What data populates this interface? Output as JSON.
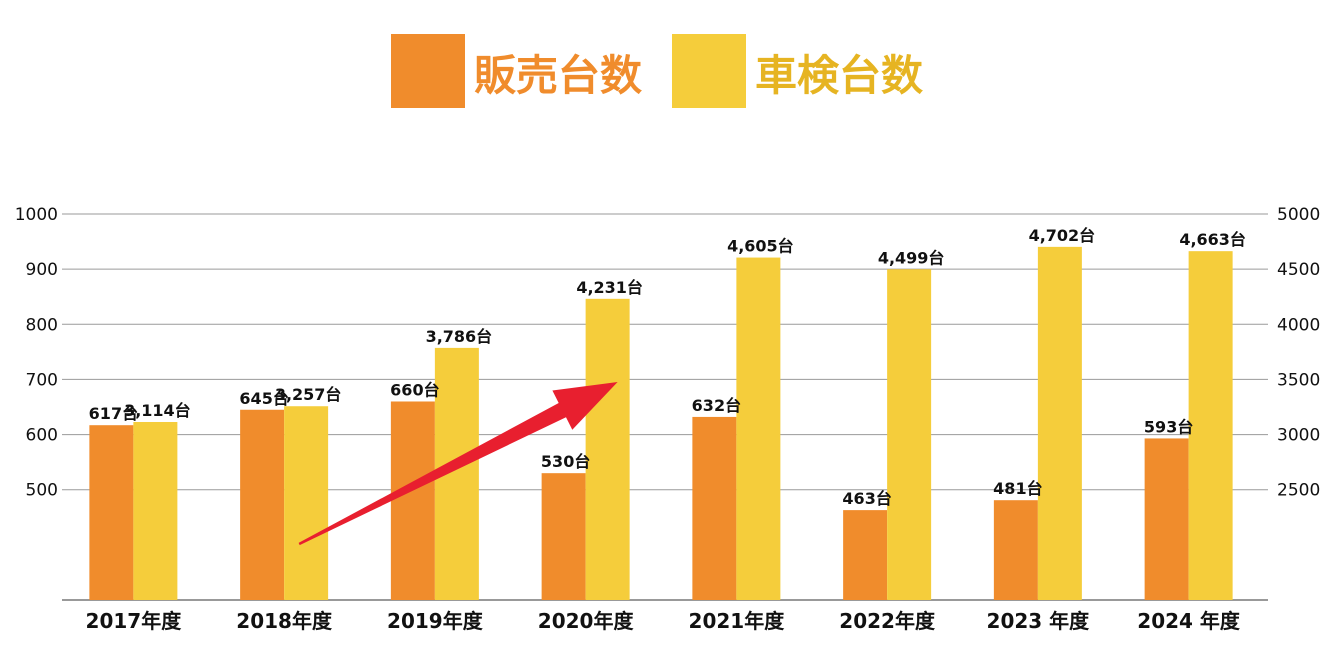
{
  "chart_data": {
    "type": "bar",
    "categories": [
      "2017年度",
      "2018年度",
      "2019年度",
      "2020年度",
      "2021年度",
      "2022年度",
      "2023 年度",
      "2024 年度"
    ],
    "series": [
      {
        "name": "販売台数",
        "axis": "left",
        "color": "#f08c2c",
        "values": [
          617,
          645,
          660,
          530,
          632,
          463,
          481,
          593
        ],
        "labels": [
          "617台",
          "645台",
          "660台",
          "530台",
          "632台",
          "463台",
          "481台",
          "593台"
        ]
      },
      {
        "name": "車検台数",
        "axis": "right",
        "color": "#f5cd3b",
        "values": [
          3114,
          3257,
          3786,
          4231,
          4605,
          4499,
          4702,
          4663
        ],
        "labels": [
          "3,114台",
          "3,257台",
          "3,786台",
          "4,231台",
          "4,605台",
          "4,499台",
          "4,702台",
          "4,663台"
        ]
      }
    ],
    "y_left": {
      "ticks": [
        500,
        600,
        700,
        800,
        900,
        1000
      ],
      "range": [
        300,
        1000
      ]
    },
    "y_right": {
      "ticks": [
        2500,
        3000,
        3500,
        4000,
        4500,
        5000
      ],
      "range": [
        1500,
        5000
      ]
    },
    "grid": true,
    "legend_position": "top-center",
    "legend_label_colors": [
      "#f08c2c",
      "#e6b422"
    ],
    "annotations": [
      {
        "type": "arrow",
        "color": "#e81f2f",
        "from_category": "2018年度",
        "to_category": "2020年度",
        "meaning": "upward trend"
      }
    ],
    "gridline_color": "#9a9a9a",
    "baseline_color": "#333333"
  }
}
